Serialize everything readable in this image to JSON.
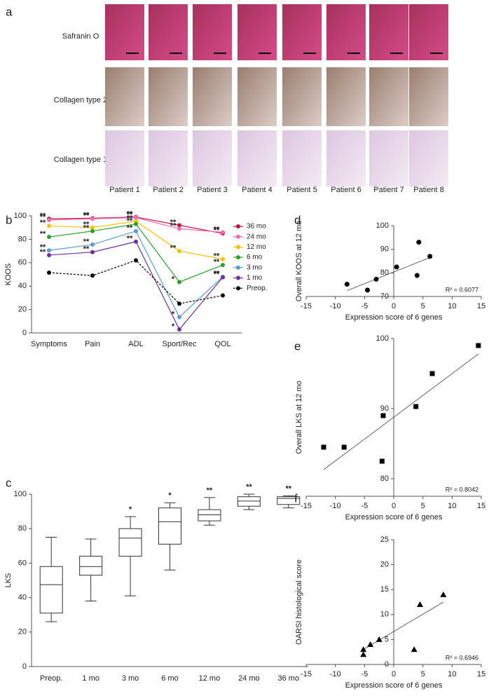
{
  "panel_a": {
    "panel": "a",
    "row_labels": [
      "Safranin O",
      "Collagen type 2",
      "Collagen type 1"
    ],
    "column_labels": [
      "Patient 1",
      "Patient 2",
      "Patient 3",
      "Patient 4",
      "Patient 5",
      "Patient 6",
      "Patient 7",
      "Patient 8"
    ]
  },
  "chart_data": [
    {
      "type": "line",
      "panel": "b",
      "y_label": "KOOS",
      "categories": [
        "Symptoms",
        "Pain",
        "ADL",
        "Sport/Rec",
        "QOL"
      ],
      "ylim": [
        0,
        100
      ],
      "yticks": [
        0,
        20,
        40,
        60,
        80,
        100
      ],
      "series": [
        {
          "name": "36 mo",
          "color": "#c0143c",
          "values": [
            97.5,
            98,
            99,
            92,
            85
          ],
          "significance": [
            "**",
            "**",
            "**",
            "**",
            "**"
          ]
        },
        {
          "name": "24 mo",
          "color": "#f06cb4",
          "values": [
            96.5,
            97.5,
            98.5,
            89,
            86
          ],
          "significance": [
            "**",
            "**",
            "**",
            "**",
            "**"
          ]
        },
        {
          "name": "12 mo",
          "color": "#f5c200",
          "values": [
            91.5,
            90,
            95.5,
            70,
            63
          ],
          "significance": [
            "**",
            "**",
            "**",
            "**",
            "**"
          ]
        },
        {
          "name": "6 mo",
          "color": "#2ca02c",
          "values": [
            82,
            87,
            93,
            43.5,
            58
          ],
          "significance": [
            "**",
            "**",
            "**",
            "*",
            "**"
          ]
        },
        {
          "name": "3 mo",
          "color": "#5b9bd5",
          "values": [
            70.5,
            75.5,
            87,
            13.5,
            48
          ],
          "significance": [
            "**",
            "**",
            "**",
            "*",
            "**"
          ]
        },
        {
          "name": "1 mo",
          "color": "#7030a0",
          "values": [
            66.5,
            69,
            78,
            3,
            47.5
          ],
          "significance": [
            "**",
            "**",
            "**",
            "*",
            "**"
          ]
        },
        {
          "name": "Preop.",
          "color": "#000000",
          "dash": true,
          "values": [
            51.5,
            49,
            62,
            25,
            32
          ]
        }
      ]
    },
    {
      "type": "box",
      "panel": "c",
      "y_label": "LKS",
      "categories": [
        "Preop.",
        "1 mo",
        "3 mo",
        "6 mo",
        "12 mo",
        "24 mo",
        "36 mo"
      ],
      "ylim": [
        0,
        100
      ],
      "yticks": [
        0,
        20,
        40,
        60,
        80,
        100
      ],
      "boxes": [
        {
          "min": 26,
          "q1": 31,
          "median": 47.5,
          "q3": 58,
          "max": 75
        },
        {
          "min": 38,
          "q1": 53,
          "median": 58,
          "q3": 64,
          "max": 74
        },
        {
          "min": 41,
          "q1": 64,
          "median": 74.5,
          "q3": 80,
          "max": 87
        },
        {
          "min": 56,
          "q1": 71,
          "median": 84,
          "q3": 92,
          "max": 95
        },
        {
          "min": 82,
          "q1": 84.5,
          "median": 88,
          "q3": 91,
          "max": 98
        },
        {
          "min": 91,
          "q1": 93,
          "median": 96,
          "q3": 98.5,
          "max": 100
        },
        {
          "min": 92,
          "q1": 94,
          "median": 97.5,
          "q3": 98.5,
          "max": 99
        }
      ],
      "significance": [
        null,
        null,
        "*",
        "*",
        "**",
        "**",
        "**"
      ]
    },
    {
      "type": "scatter",
      "panel": "d",
      "marker": "circle",
      "x_label": "Expression score of 6 genes",
      "y_label": "Overall KOOS at 12 mo",
      "annotation": "R² = 0.6077",
      "xlim": [
        -15,
        15
      ],
      "xticks": [
        -15,
        -10,
        -5,
        0,
        5,
        10,
        15
      ],
      "ylim": [
        70,
        100
      ],
      "yticks": [
        70,
        80,
        90,
        100
      ],
      "x": [
        -8,
        -4.5,
        -3,
        0.5,
        4,
        4.3,
        6.2
      ],
      "values": [
        75.2,
        72.7,
        77.3,
        82.5,
        78.9,
        93,
        87
      ],
      "fit": {
        "x": [
          -8,
          6.2
        ],
        "y": [
          72.5,
          86.5
        ]
      }
    },
    {
      "type": "scatter",
      "panel": "e",
      "marker": "square",
      "x_label": "Expression score of 6 genes",
      "y_label": "Overall LKS at 12 mo",
      "annotation": "R² = 0.8042",
      "xlim": [
        -15,
        15
      ],
      "xticks": [
        -15,
        -10,
        -5,
        0,
        5,
        10,
        15
      ],
      "ylim": [
        77.5,
        100
      ],
      "yticks": [
        80,
        90,
        100
      ],
      "x": [
        -12,
        -8.5,
        -2,
        -1.8,
        3.8,
        6.6,
        14.5
      ],
      "values": [
        84.5,
        84.5,
        82.5,
        89,
        90.3,
        95,
        99
      ],
      "fit": {
        "x": [
          -12,
          14.5
        ],
        "y": [
          81.3,
          97.8
        ]
      }
    },
    {
      "type": "scatter",
      "panel": "f",
      "marker": "triangle",
      "x_label": "Expression score of 6 genes",
      "y_label": "OARSI histological score",
      "annotation": "R² = 0.6946",
      "xlim": [
        -15,
        15
      ],
      "xticks": [
        -15,
        -10,
        -5,
        0,
        5,
        10,
        15
      ],
      "ylim": [
        0,
        25
      ],
      "yticks": [
        0,
        5,
        10,
        15,
        20,
        25
      ],
      "x": [
        -5.2,
        -5.2,
        -4,
        -2.5,
        3.5,
        4.5,
        8.5
      ],
      "values": [
        2,
        3,
        4,
        5,
        3,
        12,
        14
      ],
      "fit": {
        "x": [
          -5.2,
          8.5
        ],
        "y": [
          3,
          12.5
        ]
      }
    }
  ]
}
